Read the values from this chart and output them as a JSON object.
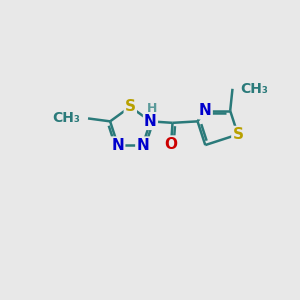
{
  "background_color": "#e8e8e8",
  "atom_colors": {
    "S": "#b8a000",
    "N": "#0000cc",
    "O": "#cc0000",
    "C": "#2a7a7a",
    "H": "#5a9a9a"
  },
  "bond_color": "#2a7a7a",
  "bond_width": 1.8,
  "font_size": 11,
  "figsize": [
    3.0,
    3.0
  ],
  "dpi": 100
}
